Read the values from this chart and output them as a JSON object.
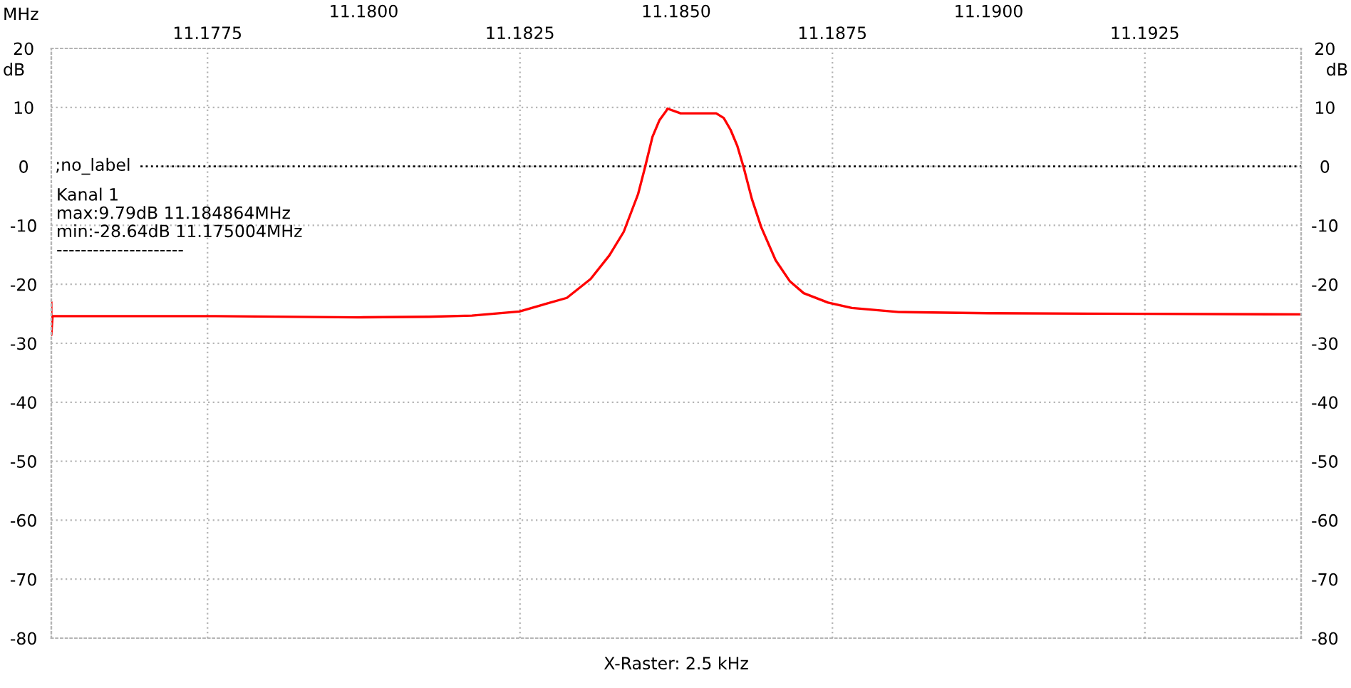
{
  "chart_data": {
    "type": "line",
    "xlabel": "MHz",
    "ylabel": "dB",
    "y2label": "dB",
    "xlim": [
      11.175,
      11.195
    ],
    "xticks": [
      {
        "value": 11.1775,
        "label": "11.1775"
      },
      {
        "value": 11.1825,
        "label": "11.1825"
      },
      {
        "value": 11.1875,
        "label": "11.1875"
      },
      {
        "value": 11.1925,
        "label": "11.1925"
      }
    ],
    "x2lim": [
      11.175,
      11.195
    ],
    "x2ticks": [
      {
        "value": 11.18,
        "label": "11.1800"
      },
      {
        "value": 11.185,
        "label": "11.1850"
      },
      {
        "value": 11.19,
        "label": "11.1900"
      }
    ],
    "ylim": [
      -80,
      20
    ],
    "yticks": [
      -80,
      -70,
      -60,
      -50,
      -40,
      -30,
      -20,
      -10,
      0,
      10,
      20
    ],
    "y2lim": [
      -80,
      20
    ],
    "y2ticks": [
      -80,
      -70,
      -60,
      -50,
      -40,
      -30,
      -20,
      -10,
      0,
      10,
      20
    ],
    "grid": true,
    "marker": "none",
    "line_style": "solid",
    "ref_lines": [
      {
        "axis": "y",
        "value": 0,
        "label": ";no_label",
        "color": "#000000",
        "line_style": "dotted"
      }
    ],
    "annotations": [
      "Kanal 1",
      "max:9.79dB 11.184864MHz",
      "min:-28.64dB 11.175004MHz",
      "---------------------",
      "X-Raster: 2.5 kHz"
    ],
    "series": [
      {
        "color": "#ff0000",
        "x": [
          11.175,
          11.175,
          11.17502,
          11.17763,
          11.1799,
          11.18104,
          11.18173,
          11.18249,
          11.18325,
          11.18363,
          11.18393,
          11.18416,
          11.18439,
          11.1845,
          11.18462,
          11.18473,
          11.18484,
          11.18486,
          11.18507,
          11.18564,
          11.18576,
          11.18587,
          11.18598,
          11.18608,
          11.18621,
          11.18636,
          11.18659,
          11.18682,
          11.18704,
          11.18743,
          11.18781,
          11.18856,
          11.19,
          11.19244,
          11.195
        ],
        "values": [
          -23.1,
          -28.6,
          -25.4,
          -25.4,
          -25.6,
          -25.5,
          -25.3,
          -24.6,
          -22.3,
          -19.1,
          -15.1,
          -11.1,
          -4.7,
          -0.2,
          5.0,
          7.8,
          9.4,
          9.8,
          9.0,
          9.0,
          8.2,
          6.2,
          3.4,
          -0.2,
          -5.5,
          -10.3,
          -15.9,
          -19.5,
          -21.5,
          -23.1,
          -24.0,
          -24.7,
          -24.9,
          -25.0,
          -25.1
        ]
      }
    ]
  }
}
